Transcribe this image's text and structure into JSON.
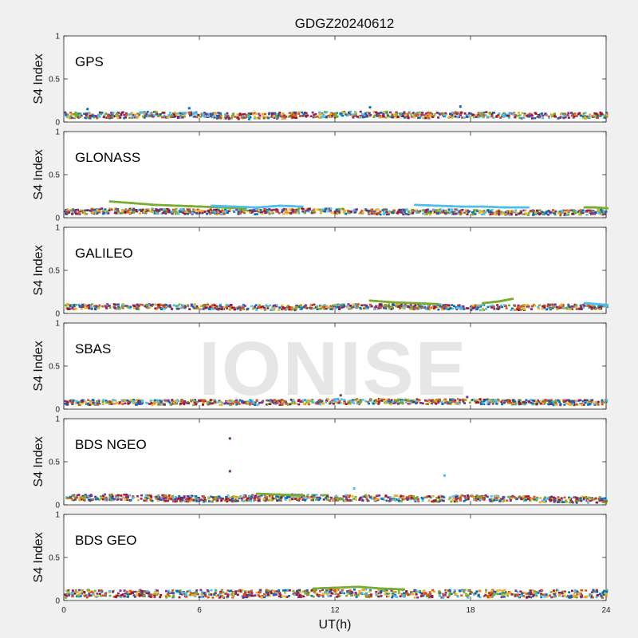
{
  "chart_data": {
    "type": "scatter",
    "title": "GDGZ20240612",
    "xlabel": "UT(h)",
    "ylabel": "S4 Index",
    "xlim": [
      0,
      24
    ],
    "ylim": [
      0,
      1
    ],
    "xticks": [
      "0",
      "6",
      "12",
      "18",
      "24"
    ],
    "yticks": [
      "0",
      "0.5",
      "1"
    ],
    "grid": false,
    "watermark": "IONISE",
    "series_colors": [
      "#0072BD",
      "#D95319",
      "#EDB120",
      "#7E2F8E",
      "#77AC30",
      "#4DBEEE",
      "#A2142F"
    ],
    "panels": [
      {
        "label": "GPS",
        "baseline": [
          [
            0,
            0.08
          ],
          [
            2,
            0.08
          ],
          [
            4,
            0.09
          ],
          [
            6,
            0.08
          ],
          [
            8,
            0.07
          ],
          [
            10,
            0.08
          ],
          [
            12,
            0.09
          ],
          [
            14,
            0.09
          ],
          [
            16,
            0.08
          ],
          [
            18,
            0.09
          ],
          [
            20,
            0.08
          ],
          [
            22,
            0.08
          ],
          [
            24,
            0.08
          ]
        ],
        "spread": 0.035,
        "features": [
          {
            "name": "Peak",
            "x": [
              1.0,
              5.5,
              13.5,
              17.5
            ],
            "y": [
              0.15,
              0.16,
              0.17,
              0.18
            ]
          }
        ]
      },
      {
        "label": "GLONASS",
        "baseline": [
          [
            0,
            0.07
          ],
          [
            2,
            0.08
          ],
          [
            4,
            0.08
          ],
          [
            6,
            0.07
          ],
          [
            8,
            0.07
          ],
          [
            10,
            0.08
          ],
          [
            12,
            0.08
          ],
          [
            14,
            0.07
          ],
          [
            16,
            0.07
          ],
          [
            18,
            0.07
          ],
          [
            20,
            0.06
          ],
          [
            22,
            0.06
          ],
          [
            24,
            0.07
          ]
        ],
        "spread": 0.03,
        "features": [
          {
            "name": "Green arc",
            "x": [
              2.0,
              3.0,
              4.0,
              5.0,
              6.0,
              7.0,
              8.0
            ],
            "y": [
              0.19,
              0.17,
              0.15,
              0.14,
              0.13,
              0.12,
              0.11
            ]
          },
          {
            "name": "Cyan arc",
            "x": [
              6.5,
              7.5,
              8.5,
              9.5,
              10.5
            ],
            "y": [
              0.14,
              0.13,
              0.12,
              0.14,
              0.13
            ]
          },
          {
            "name": "Cyan arc",
            "x": [
              15.5,
              16.5,
              17.5,
              18.5,
              19.5,
              20.5
            ],
            "y": [
              0.15,
              0.14,
              0.13,
              0.13,
              0.12,
              0.12
            ]
          },
          {
            "name": "Green arc",
            "x": [
              23.0,
              23.5,
              24.0
            ],
            "y": [
              0.12,
              0.12,
              0.11
            ]
          }
        ]
      },
      {
        "label": "GALILEO",
        "baseline": [
          [
            0,
            0.08
          ],
          [
            2,
            0.08
          ],
          [
            4,
            0.08
          ],
          [
            6,
            0.08
          ],
          [
            8,
            0.07
          ],
          [
            10,
            0.07
          ],
          [
            12,
            0.08
          ],
          [
            14,
            0.08
          ],
          [
            16,
            0.08
          ],
          [
            18,
            0.07
          ],
          [
            20,
            0.07
          ],
          [
            22,
            0.08
          ],
          [
            24,
            0.08
          ]
        ],
        "spread": 0.03,
        "features": [
          {
            "name": "Green arc",
            "x": [
              13.5,
              14.5,
              15.5,
              16.5
            ],
            "y": [
              0.15,
              0.13,
              0.12,
              0.11
            ]
          },
          {
            "name": "Green arc",
            "x": [
              18.5,
              19.2,
              19.8
            ],
            "y": [
              0.12,
              0.14,
              0.17
            ]
          },
          {
            "name": "Cyan arc",
            "x": [
              23.0,
              23.5,
              24.0
            ],
            "y": [
              0.12,
              0.11,
              0.1
            ]
          }
        ]
      },
      {
        "label": "SBAS",
        "baseline": [
          [
            0,
            0.08
          ],
          [
            3,
            0.08
          ],
          [
            6,
            0.08
          ],
          [
            9,
            0.08
          ],
          [
            12,
            0.09
          ],
          [
            15,
            0.09
          ],
          [
            18,
            0.09
          ],
          [
            21,
            0.08
          ],
          [
            24,
            0.08
          ]
        ],
        "spread": 0.03,
        "features": [
          {
            "name": "Peak",
            "x": [
              12.2,
              17.8
            ],
            "y": [
              0.16,
              0.14
            ]
          }
        ]
      },
      {
        "label": "BDS NGEO",
        "baseline": [
          [
            0,
            0.08
          ],
          [
            2,
            0.09
          ],
          [
            4,
            0.08
          ],
          [
            6,
            0.07
          ],
          [
            8,
            0.08
          ],
          [
            10,
            0.09
          ],
          [
            12,
            0.08
          ],
          [
            14,
            0.08
          ],
          [
            16,
            0.07
          ],
          [
            18,
            0.08
          ],
          [
            20,
            0.07
          ],
          [
            22,
            0.06
          ],
          [
            24,
            0.06
          ]
        ],
        "spread": 0.035,
        "features": [
          {
            "name": "Outlier",
            "x": [
              7.3,
              7.3
            ],
            "y": [
              0.77,
              0.39
            ]
          },
          {
            "name": "Outlier",
            "x": [
              16.8,
              12.8
            ],
            "y": [
              0.34,
              0.19
            ]
          },
          {
            "name": "Green arc",
            "x": [
              8.5,
              9.5,
              10.5
            ],
            "y": [
              0.13,
              0.12,
              0.11
            ]
          }
        ]
      },
      {
        "label": "BDS GEO",
        "baseline": [
          [
            0,
            0.08
          ],
          [
            4,
            0.08
          ],
          [
            8,
            0.08
          ],
          [
            12,
            0.09
          ],
          [
            16,
            0.08
          ],
          [
            20,
            0.08
          ],
          [
            24,
            0.08
          ]
        ],
        "spread": 0.045,
        "features": [
          {
            "name": "Green arc",
            "x": [
              11.0,
              12.0,
              13.0,
              14.0,
              15.0
            ],
            "y": [
              0.14,
              0.15,
              0.16,
              0.14,
              0.13
            ]
          }
        ]
      }
    ]
  }
}
